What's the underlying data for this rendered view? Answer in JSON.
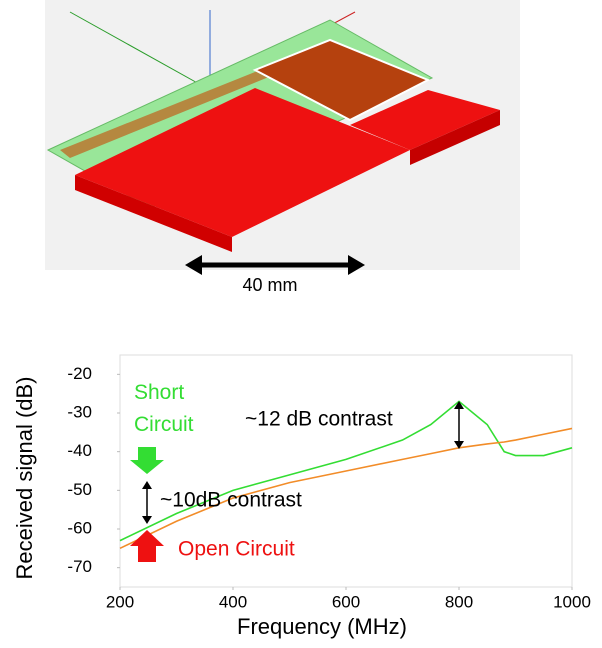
{
  "figure": {
    "dimension_label": "40 mm"
  },
  "chart_data": {
    "type": "line",
    "x_label": "Frequency (MHz)",
    "y_label": "Received signal (dB)",
    "x": [
      200,
      300,
      400,
      500,
      600,
      700,
      750,
      800,
      850,
      880,
      900,
      950,
      1000
    ],
    "series": [
      {
        "name": "Short Circuit",
        "color": "#33dd33",
        "values": [
          -63,
          -56,
          -50,
          -46,
          -42,
          -37,
          -33,
          -27,
          -33,
          -40,
          -41,
          -41,
          -39
        ]
      },
      {
        "name": "Open Circuit",
        "color": "#f28c28",
        "values": [
          -65,
          -58,
          -52,
          -48,
          -45,
          -42,
          -40.5,
          -39,
          -38,
          -37.5,
          -37,
          -35.5,
          -34
        ]
      }
    ],
    "annotations": [
      "~12 dB contrast",
      "~10dB contrast"
    ],
    "xlim": [
      200,
      1000
    ],
    "xticks": [
      200,
      400,
      600,
      800,
      1000
    ],
    "ylim": [
      -75,
      -15
    ],
    "yticks": [
      -20,
      -30,
      -40,
      -50,
      -60,
      -70
    ],
    "grid": false
  }
}
